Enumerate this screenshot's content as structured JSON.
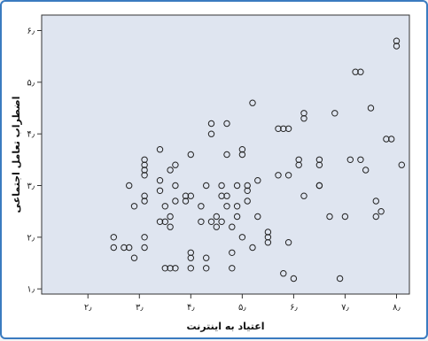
{
  "chart_data": {
    "type": "scatter",
    "title": "",
    "xlabel": "اعتیاد به اینترنت",
    "ylabel": "اضطراب تعامل اجتماعی",
    "xlim": [
      1.1,
      8.25
    ],
    "ylim": [
      0.9,
      6.3
    ],
    "xticks": [
      2,
      3,
      4,
      5,
      6,
      7,
      8
    ],
    "yticks": [
      1,
      2,
      3,
      4,
      5,
      6
    ],
    "xtick_labels": [
      "۲٫",
      "۳٫",
      "۴٫",
      "۵٫",
      "۶٫",
      "۷٫",
      "۸٫"
    ],
    "ytick_labels": [
      "۱٫",
      "۲٫",
      "۳٫",
      "۴٫",
      "۵٫",
      "۶٫"
    ],
    "grid": false,
    "background_color": "#dfe5f0",
    "marker": "open-circle",
    "marker_color": "#222222",
    "points": [
      [
        2.5,
        2.0
      ],
      [
        2.5,
        1.8
      ],
      [
        2.7,
        1.8
      ],
      [
        2.8,
        1.8
      ],
      [
        2.8,
        3.0
      ],
      [
        2.9,
        1.6
      ],
      [
        2.9,
        2.6
      ],
      [
        3.1,
        1.8
      ],
      [
        3.1,
        2.0
      ],
      [
        3.1,
        2.7
      ],
      [
        3.1,
        2.8
      ],
      [
        3.1,
        3.2
      ],
      [
        3.1,
        3.3
      ],
      [
        3.1,
        3.4
      ],
      [
        3.1,
        3.5
      ],
      [
        3.4,
        3.1
      ],
      [
        3.4,
        3.7
      ],
      [
        3.4,
        2.9
      ],
      [
        3.4,
        2.3
      ],
      [
        3.5,
        2.3
      ],
      [
        3.5,
        1.4
      ],
      [
        3.5,
        2.6
      ],
      [
        3.6,
        1.4
      ],
      [
        3.6,
        2.2
      ],
      [
        3.6,
        2.4
      ],
      [
        3.6,
        3.3
      ],
      [
        3.7,
        1.4
      ],
      [
        3.7,
        2.7
      ],
      [
        3.7,
        3.0
      ],
      [
        3.7,
        3.4
      ],
      [
        3.9,
        2.7
      ],
      [
        3.9,
        2.8
      ],
      [
        4.0,
        2.8
      ],
      [
        4.0,
        1.7
      ],
      [
        4.0,
        1.6
      ],
      [
        4.0,
        3.6
      ],
      [
        4.0,
        1.4
      ],
      [
        4.2,
        2.3
      ],
      [
        4.2,
        2.6
      ],
      [
        4.3,
        3.0
      ],
      [
        4.3,
        1.4
      ],
      [
        4.3,
        1.6
      ],
      [
        4.4,
        2.3
      ],
      [
        4.4,
        4.0
      ],
      [
        4.4,
        4.2
      ],
      [
        4.5,
        2.4
      ],
      [
        4.5,
        2.2
      ],
      [
        4.6,
        2.3
      ],
      [
        4.6,
        2.8
      ],
      [
        4.6,
        3.0
      ],
      [
        4.7,
        2.8
      ],
      [
        4.7,
        4.2
      ],
      [
        4.7,
        3.6
      ],
      [
        4.7,
        2.6
      ],
      [
        4.8,
        1.7
      ],
      [
        4.8,
        2.2
      ],
      [
        4.8,
        1.4
      ],
      [
        4.9,
        2.6
      ],
      [
        4.9,
        3.0
      ],
      [
        4.9,
        2.4
      ],
      [
        5.0,
        3.6
      ],
      [
        5.0,
        2.0
      ],
      [
        5.0,
        3.7
      ],
      [
        5.1,
        2.7
      ],
      [
        5.1,
        2.9
      ],
      [
        5.1,
        3.0
      ],
      [
        5.2,
        4.6
      ],
      [
        5.2,
        1.8
      ],
      [
        5.3,
        3.1
      ],
      [
        5.3,
        2.4
      ],
      [
        5.5,
        2.1
      ],
      [
        5.5,
        2.0
      ],
      [
        5.5,
        1.9
      ],
      [
        5.7,
        3.2
      ],
      [
        5.7,
        4.1
      ],
      [
        5.8,
        4.1
      ],
      [
        5.8,
        1.3
      ],
      [
        5.9,
        3.2
      ],
      [
        5.9,
        4.1
      ],
      [
        5.9,
        1.9
      ],
      [
        6.0,
        1.2
      ],
      [
        6.1,
        3.5
      ],
      [
        6.1,
        3.4
      ],
      [
        6.2,
        2.8
      ],
      [
        6.2,
        4.3
      ],
      [
        6.2,
        4.4
      ],
      [
        6.5,
        3.0
      ],
      [
        6.5,
        3.4
      ],
      [
        6.5,
        3.5
      ],
      [
        6.5,
        3.0
      ],
      [
        6.7,
        2.4
      ],
      [
        6.8,
        4.4
      ],
      [
        6.9,
        1.2
      ],
      [
        7.0,
        2.4
      ],
      [
        7.1,
        3.5
      ],
      [
        7.2,
        5.2
      ],
      [
        7.3,
        3.5
      ],
      [
        7.3,
        5.2
      ],
      [
        7.4,
        3.3
      ],
      [
        7.5,
        4.5
      ],
      [
        7.6,
        2.4
      ],
      [
        7.6,
        2.7
      ],
      [
        7.7,
        2.5
      ],
      [
        7.8,
        3.9
      ],
      [
        7.9,
        3.9
      ],
      [
        8.0,
        5.8
      ],
      [
        8.0,
        5.7
      ],
      [
        8.1,
        3.4
      ]
    ]
  }
}
